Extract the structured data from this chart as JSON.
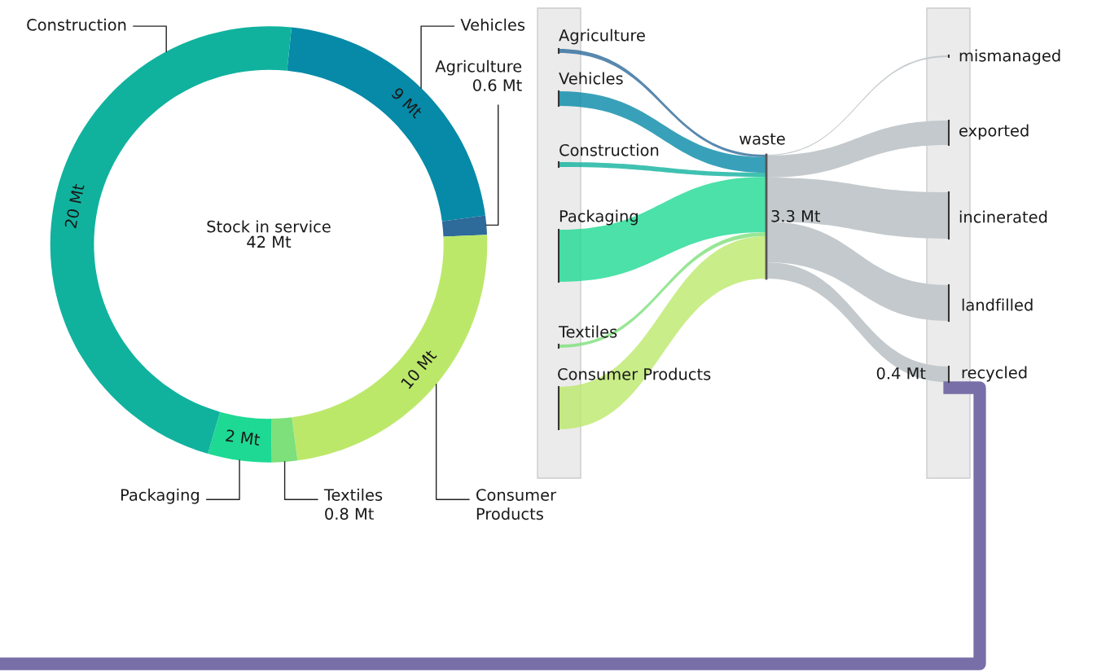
{
  "chart_data": [
    {
      "type": "donut",
      "categories": [
        "Vehicles",
        "Agriculture",
        "Consumer\nProducts",
        "Textiles",
        "Packaging",
        "Construction"
      ],
      "values": [
        9,
        0.6,
        10,
        0.8,
        2,
        20
      ],
      "colors": [
        "#068aa8",
        "#2e6a9a",
        "#bce86a",
        "#7de07a",
        "#1ed993",
        "#10b29e"
      ],
      "value_labels": [
        "9 Mt",
        "0.6 Mt",
        "10 Mt",
        "0.8 Mt",
        "2 Mt",
        "20 Mt"
      ],
      "annotations": [
        "Stock in service\n42 Mt"
      ]
    },
    {
      "type": "other",
      "annotations": [
        "Agriculture",
        "Vehicles",
        "Construction",
        "Packaging",
        "Textiles",
        "Consumer Products",
        "waste",
        "3.3 Mt",
        "mismanaged",
        "exported",
        "incinerated",
        "landfilled",
        "recycled",
        "0.4 Mt"
      ]
    }
  ]
}
